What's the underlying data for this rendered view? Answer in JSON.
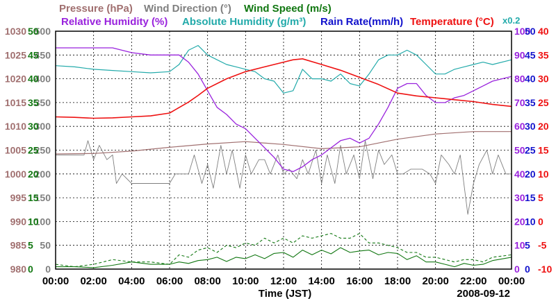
{
  "chart_data": {
    "type": "line",
    "date": "2008-09-12",
    "xlabel": "Time (JST)",
    "x_ticks": [
      "00:00",
      "02:00",
      "04:00",
      "06:00",
      "08:00",
      "10:00",
      "12:00",
      "14:00",
      "16:00",
      "18:00",
      "20:00",
      "22:00",
      "00:00"
    ],
    "colors": {
      "pressure": "#a06f6f",
      "wind_direction": "#7f7f7f",
      "wind_speed": "#117711",
      "relative_humidity": "#9922dd",
      "absolute_humidity": "#22aaaa",
      "rain_rate": "#1111cc",
      "temperature": "#ee1111"
    },
    "legend": {
      "pressure": "Pressure (hPa)",
      "wind_direction": "Wind Direction (°)",
      "wind_speed": "Wind Speed (m/s)",
      "relative_humidity": "Relative Humidity (%)",
      "absolute_humidity": "Absolute Humidity (g/m³)",
      "rain_rate": "Rain Rate(mm/h)",
      "temperature": "Temperature (°C)",
      "ah_scale_note": "x0.2"
    },
    "axes": {
      "pressure": {
        "ticks": [
          "1030",
          "1025",
          "1020",
          "1015",
          "1010",
          "1005",
          "1000",
          "995",
          "990",
          "985",
          "980"
        ],
        "ylim": [
          980,
          1030
        ]
      },
      "wind_direction": {
        "ticks": [
          "500",
          "450",
          "400",
          "350",
          "300",
          "250",
          "200",
          "150",
          "100",
          "50",
          "0"
        ],
        "ylim": [
          0,
          500
        ]
      },
      "wind_speed": {
        "ticks": [
          "50",
          "45",
          "40",
          "35",
          "30",
          "25",
          "20",
          "15",
          "10",
          "5",
          "0"
        ],
        "ylim": [
          0,
          50
        ]
      },
      "relative_humidity": {
        "ticks": [
          "100",
          "90",
          "80",
          "70",
          "60",
          "50",
          "40",
          "30",
          "20",
          "10",
          "0"
        ],
        "ylim": [
          0,
          100
        ]
      },
      "rain_rate": {
        "ticks": [
          "50",
          "45",
          "40",
          "35",
          "30",
          "25",
          "20",
          "15",
          "10",
          "5",
          "0"
        ],
        "ylim": [
          0,
          50
        ]
      },
      "temperature": {
        "ticks": [
          "40",
          "35",
          "30",
          "25",
          "20",
          "15",
          "10",
          "5",
          "0",
          "-5",
          "-10"
        ],
        "ylim": [
          -10,
          40
        ]
      }
    },
    "series": [
      {
        "key": "pressure",
        "x": [
          0,
          2,
          4,
          6,
          8,
          10,
          12,
          14,
          16,
          18,
          20,
          22,
          24
        ],
        "values": [
          1004.2,
          1004.3,
          1004.8,
          1005.6,
          1006.3,
          1006.8,
          1006.2,
          1005.3,
          1005.7,
          1007.3,
          1008.4,
          1008.9,
          1008.9
        ]
      },
      {
        "key": "temperature",
        "x": [
          0,
          1,
          2,
          3,
          4,
          5,
          6,
          7,
          7.5,
          8,
          9,
          10,
          11,
          12,
          12.5,
          13,
          14,
          15,
          16,
          17,
          18,
          19,
          20,
          21,
          22,
          23,
          24
        ],
        "values": [
          22.0,
          21.9,
          21.7,
          21.8,
          22.0,
          22.2,
          22.8,
          25.1,
          26.5,
          28.0,
          30.0,
          31.5,
          32.5,
          33.5,
          34.0,
          34.2,
          33.0,
          31.8,
          30.3,
          28.8,
          27.0,
          26.4,
          26.0,
          25.6,
          25.2,
          24.6,
          24.2
        ]
      },
      {
        "key": "relative_humidity",
        "x": [
          0,
          1,
          2,
          3,
          4,
          5,
          6,
          6.5,
          7,
          7.5,
          8,
          8.5,
          9,
          9.5,
          10,
          10.5,
          11,
          11.5,
          12,
          12.5,
          13,
          13.5,
          14,
          14.5,
          15,
          15.5,
          16,
          16.5,
          17,
          17.5,
          18,
          18.5,
          19,
          19.5,
          20,
          20.5,
          21,
          21.5,
          22,
          22.5,
          23,
          24
        ],
        "values": [
          93,
          93,
          93,
          93,
          91,
          90,
          90,
          90,
          87,
          82,
          75,
          68,
          65,
          61,
          59,
          55,
          51,
          47,
          42,
          41,
          43,
          46,
          48,
          51,
          54,
          55,
          53,
          55,
          61,
          68,
          76,
          78,
          78,
          73,
          70,
          70,
          72,
          73,
          75,
          77,
          79,
          81
        ]
      },
      {
        "key": "absolute_humidity",
        "x": [
          0,
          1,
          2,
          3,
          4,
          5,
          6,
          6.5,
          7,
          7.5,
          8,
          8.5,
          9,
          9.5,
          10,
          10.5,
          11,
          11.5,
          12,
          12.5,
          13,
          13.5,
          14,
          14.5,
          15,
          15.5,
          16,
          16.5,
          17,
          17.5,
          18,
          18.5,
          19,
          19.5,
          20,
          20.5,
          21,
          21.5,
          22,
          22.5,
          23,
          24
        ],
        "values": [
          85.5,
          85,
          84,
          83.5,
          83,
          82.5,
          83,
          86,
          92,
          94,
          90,
          88,
          86,
          85,
          84,
          83,
          80,
          79,
          74,
          75,
          84,
          80,
          80,
          79,
          82,
          78,
          77,
          82,
          88,
          90,
          90,
          92,
          90,
          86,
          82,
          82,
          84,
          85,
          86,
          87,
          86,
          88
        ]
      },
      {
        "key": "wind_direction",
        "x": [
          0,
          1.5,
          1.7,
          2,
          2.3,
          2.7,
          3,
          3.2,
          3.5,
          4,
          5,
          6,
          6.3,
          6.7,
          7,
          7.3,
          7.7,
          8,
          8.3,
          8.7,
          9,
          9.3,
          9.7,
          10,
          10.3,
          10.7,
          11,
          11.3,
          11.7,
          12,
          12.3,
          12.7,
          13,
          13.3,
          13.7,
          14,
          14.3,
          14.7,
          15,
          15.3,
          15.7,
          16,
          16.3,
          16.7,
          17,
          17.3,
          17.7,
          18,
          18.3,
          18.7,
          19,
          19.3,
          19.7,
          20,
          20.3,
          20.7,
          21,
          21.3,
          21.7,
          22,
          22.3,
          22.7,
          23,
          23.3,
          23.7,
          24
        ],
        "values": [
          240,
          240,
          270,
          230,
          260,
          230,
          240,
          180,
          200,
          180,
          180,
          180,
          200,
          200,
          200,
          240,
          180,
          220,
          170,
          260,
          200,
          250,
          170,
          240,
          200,
          230,
          230,
          200,
          240,
          200,
          210,
          190,
          230,
          200,
          250,
          180,
          240,
          180,
          260,
          200,
          240,
          190,
          270,
          190,
          250,
          220,
          240,
          200,
          200,
          210,
          210,
          210,
          200,
          180,
          240,
          220,
          200,
          240,
          115,
          180,
          220,
          250,
          200,
          240,
          200,
          200
        ]
      },
      {
        "key": "wind_speed",
        "x": [
          0,
          1,
          2,
          3,
          4,
          5,
          6,
          6.5,
          7,
          7.5,
          8,
          8.5,
          9,
          9.5,
          10,
          10.5,
          11,
          11.5,
          12,
          12.5,
          13,
          13.5,
          14,
          14.5,
          15,
          15.5,
          16,
          16.5,
          17,
          17.5,
          18,
          18.5,
          19,
          19.5,
          20,
          20.5,
          21,
          21.5,
          22,
          22.5,
          23,
          24
        ],
        "values": [
          0.5,
          0.5,
          0.3,
          0.8,
          1.5,
          1.0,
          1.0,
          1.5,
          1.2,
          1.8,
          2.0,
          2.5,
          1.6,
          2.5,
          2.2,
          3.0,
          2.2,
          3.3,
          3.5,
          2.5,
          4.0,
          3.0,
          4.0,
          3.2,
          4.5,
          3.5,
          3.8,
          4.0,
          3.0,
          3.5,
          3.3,
          2.0,
          2.8,
          1.5,
          1.5,
          1.0,
          0.5,
          1.2,
          0.8,
          1.0,
          1.8,
          2.5
        ]
      },
      {
        "key": "wind_gust",
        "x": [
          0,
          1,
          2,
          3,
          4,
          5,
          6,
          6.5,
          7,
          7.5,
          8,
          8.5,
          9,
          9.5,
          10,
          10.5,
          11,
          11.5,
          12,
          12.5,
          13,
          13.5,
          14,
          14.5,
          15,
          15.5,
          16,
          16.5,
          17,
          17.5,
          18,
          18.5,
          19,
          19.5,
          20,
          20.5,
          21,
          21.5,
          22,
          22.5,
          23,
          24
        ],
        "values": [
          1,
          0.5,
          1,
          2,
          1.5,
          1.5,
          1,
          3,
          2.5,
          4,
          4.5,
          3.5,
          5,
          4.5,
          5.5,
          5,
          6.5,
          5.5,
          6.5,
          5.5,
          7,
          6.5,
          7,
          7.5,
          6.5,
          6.5,
          7.5,
          5.5,
          5.5,
          5,
          4.5,
          3.5,
          3.5,
          2.5,
          2.5,
          2,
          1.5,
          2,
          2,
          1.5,
          2.5,
          3
        ]
      }
    ]
  }
}
